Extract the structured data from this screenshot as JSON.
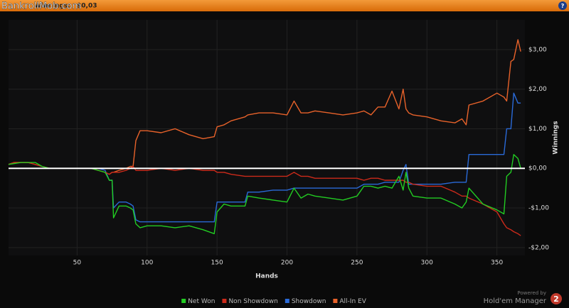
{
  "header": {
    "watermark": "BankrollMob.com",
    "title": "Winnings:",
    "value": "$0,03",
    "help": "?"
  },
  "chart_data": {
    "type": "line",
    "x_label": "Hands",
    "y_label": "Winnings",
    "x": [
      1,
      5,
      10,
      15,
      20,
      25,
      30,
      40,
      50,
      60,
      65,
      70,
      73,
      75,
      76,
      80,
      85,
      88,
      90,
      92,
      95,
      100,
      110,
      120,
      130,
      140,
      148,
      150,
      155,
      160,
      170,
      172,
      180,
      190,
      200,
      205,
      210,
      215,
      220,
      230,
      240,
      250,
      255,
      260,
      265,
      270,
      275,
      280,
      283,
      285,
      287,
      290,
      300,
      310,
      320,
      325,
      328,
      330,
      340,
      350,
      355,
      357,
      360,
      362,
      365,
      367
    ],
    "series": [
      {
        "name": "Net Won",
        "color": "#22cc22",
        "values": [
          0.1,
          0.12,
          0.15,
          0.15,
          0.15,
          0.05,
          0,
          0,
          0,
          0,
          -0.05,
          -0.1,
          -0.3,
          -0.3,
          -1.25,
          -0.95,
          -0.95,
          -1.0,
          -1.05,
          -1.4,
          -1.5,
          -1.45,
          -1.45,
          -1.5,
          -1.45,
          -1.55,
          -1.65,
          -1.1,
          -0.9,
          -0.95,
          -0.95,
          -0.7,
          -0.75,
          -0.8,
          -0.85,
          -0.5,
          -0.75,
          -0.65,
          -0.7,
          -0.75,
          -0.8,
          -0.7,
          -0.45,
          -0.45,
          -0.5,
          -0.45,
          -0.5,
          -0.2,
          -0.55,
          -0.1,
          -0.5,
          -0.7,
          -0.75,
          -0.75,
          -0.9,
          -1.0,
          -0.85,
          -0.5,
          -0.9,
          -1.05,
          -1.15,
          -0.2,
          -0.1,
          0.35,
          0.25,
          0.0
        ]
      },
      {
        "name": "Non Showdown",
        "color": "#cc2a1a",
        "values": [
          0.1,
          0.15,
          0.15,
          0.15,
          0.1,
          0.05,
          0,
          0,
          0,
          0,
          -0.05,
          -0.1,
          -0.15,
          -0.1,
          -0.1,
          -0.1,
          -0.05,
          0,
          0.05,
          -0.05,
          -0.05,
          -0.05,
          0,
          -0.05,
          0,
          -0.05,
          -0.05,
          -0.1,
          -0.1,
          -0.15,
          -0.2,
          -0.2,
          -0.2,
          -0.2,
          -0.2,
          -0.1,
          -0.2,
          -0.2,
          -0.25,
          -0.25,
          -0.25,
          -0.25,
          -0.3,
          -0.25,
          -0.25,
          -0.3,
          -0.3,
          -0.3,
          -0.3,
          -0.35,
          -0.35,
          -0.4,
          -0.45,
          -0.45,
          -0.6,
          -0.7,
          -0.7,
          -0.75,
          -0.9,
          -1.1,
          -1.4,
          -1.5,
          -1.55,
          -1.6,
          -1.65,
          -1.7
        ]
      },
      {
        "name": "Showdown",
        "color": "#2a6ad8",
        "values": [
          0,
          0,
          0,
          0,
          0,
          0,
          0,
          0,
          0,
          0,
          0,
          -0.05,
          -0.3,
          -0.3,
          -1.0,
          -0.85,
          -0.85,
          -0.9,
          -0.95,
          -1.3,
          -1.35,
          -1.35,
          -1.35,
          -1.35,
          -1.35,
          -1.35,
          -1.35,
          -0.85,
          -0.85,
          -0.85,
          -0.85,
          -0.6,
          -0.6,
          -0.55,
          -0.55,
          -0.5,
          -0.5,
          -0.5,
          -0.5,
          -0.5,
          -0.5,
          -0.5,
          -0.4,
          -0.4,
          -0.4,
          -0.35,
          -0.35,
          -0.35,
          -0.05,
          0.1,
          -0.4,
          -0.4,
          -0.4,
          -0.4,
          -0.35,
          -0.35,
          -0.35,
          0.35,
          0.35,
          0.35,
          0.35,
          1.0,
          1.0,
          1.9,
          1.65,
          1.65
        ]
      },
      {
        "name": "All-In EV",
        "color": "#e8622a",
        "values": [
          0.1,
          0.15,
          0.15,
          0.15,
          0.1,
          0.05,
          0,
          0,
          0,
          0,
          -0.05,
          -0.1,
          -0.15,
          -0.1,
          -0.1,
          -0.05,
          0,
          0.05,
          0.05,
          0.7,
          0.95,
          0.95,
          0.9,
          1.0,
          0.85,
          0.75,
          0.8,
          1.05,
          1.1,
          1.2,
          1.3,
          1.35,
          1.4,
          1.4,
          1.35,
          1.7,
          1.4,
          1.4,
          1.45,
          1.4,
          1.35,
          1.4,
          1.45,
          1.35,
          1.55,
          1.55,
          1.95,
          1.5,
          2.0,
          1.5,
          1.4,
          1.35,
          1.3,
          1.2,
          1.15,
          1.25,
          1.1,
          1.6,
          1.7,
          1.9,
          1.8,
          1.7,
          2.7,
          2.75,
          3.25,
          2.95
        ]
      }
    ],
    "xlim": [
      1,
      370
    ],
    "ylim": [
      -2.2,
      3.75
    ],
    "xticks": [
      50,
      100,
      150,
      200,
      250,
      300,
      350
    ],
    "yticks": [
      {
        "value": -2,
        "label": "-$2,00"
      },
      {
        "value": -1,
        "label": "-$1,00"
      },
      {
        "value": 0,
        "label": "$0,00"
      },
      {
        "value": 1,
        "label": "$1,00"
      },
      {
        "value": 2,
        "label": "$2,00"
      },
      {
        "value": 3,
        "label": "$3,00"
      }
    ],
    "grid": true,
    "legend": "bottom"
  },
  "footer": {
    "powered": "Powered by",
    "brand": "Hold'em Manager",
    "version": "2"
  }
}
